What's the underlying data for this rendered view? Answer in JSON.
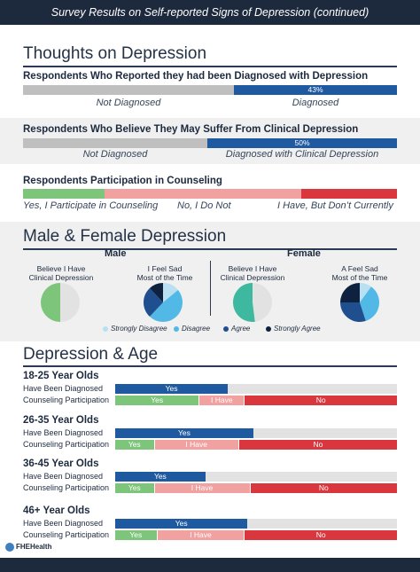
{
  "header": {
    "title": "Survey Results on Self-reported Signs of Depression (continued)"
  },
  "colors": {
    "navy": "#1d2a3e",
    "blue": "#1f5aa0",
    "grey": "#bfbfbf",
    "lightgrey": "#e2e2e2",
    "green": "#7cc57a",
    "pink": "#f0a1a0",
    "red": "#d9363e",
    "strongly_disagree": "#b9dff2",
    "disagree": "#52b8e6",
    "agree": "#1f4f8f",
    "strongly_agree": "#0e2240"
  },
  "thoughts": {
    "title": "Thoughts on Depression",
    "q1": {
      "title": "Respondents Who Reported they had been Diagnosed with Depression",
      "label": "43%",
      "not_label": "Not Diagnosed",
      "yes_label": "Diagnosed"
    },
    "q2": {
      "title": "Respondents Who Believe They May Suffer From Clinical Depression",
      "label": "50%",
      "not_label": "Not Diagnosed",
      "yes_label": "Diagnosed with Clinical Depression"
    },
    "q3": {
      "title": "Respondents Participation in Counseling",
      "yes_label": "Yes, I Participate in Counseling",
      "no_label": "No, I Do Not",
      "have_label": "I Have, But Don’t Currently"
    }
  },
  "gender": {
    "title": "Male & Female Depression",
    "male": "Male",
    "female": "Female",
    "male_pie1": {
      "line1": "Believe I Have",
      "line2": "Clinical Depression"
    },
    "male_pie2": {
      "line1": "I Feel Sad",
      "line2": "Most of the Time"
    },
    "female_pie1": {
      "line1": "Believe I Have",
      "line2": "Clinical Depression"
    },
    "female_pie2": {
      "line1": "A Feel Sad",
      "line2": "Most of the Time"
    },
    "legend": {
      "sd": "Strongly Disagree",
      "d": "Disagree",
      "a": "Agree",
      "sa": "Strongly Agree"
    }
  },
  "age": {
    "title": "Depression & Age",
    "diag_label": "Have Been Diagnosed",
    "couns_label": "Counseling Participation",
    "yes": "Yes",
    "ihave": "I Have",
    "no": "No",
    "groups": [
      {
        "name": "18-25 Year Olds"
      },
      {
        "name": "26-35 Year Olds"
      },
      {
        "name": "36-45 Year Olds"
      },
      {
        "name": "46+ Year Olds"
      }
    ]
  },
  "logo": {
    "text": "FHEHealth"
  },
  "chart_data": [
    {
      "type": "bar",
      "title": "Respondents Who Reported they had been Diagnosed with Depression",
      "categories": [
        "Not Diagnosed",
        "Diagnosed"
      ],
      "values": [
        57,
        43
      ]
    },
    {
      "type": "bar",
      "title": "Respondents Who Believe They May Suffer From Clinical Depression",
      "categories": [
        "Not Diagnosed",
        "Diagnosed with Clinical Depression"
      ],
      "values": [
        50,
        50
      ]
    },
    {
      "type": "bar",
      "title": "Respondents Participation in Counseling",
      "categories": [
        "Yes, I Participate in Counseling",
        "No, I Do Not",
        "I Have, But Don’t Currently"
      ],
      "values": [
        22,
        52,
        26
      ]
    },
    {
      "type": "pie",
      "title": "Believe I Have Clinical Depression",
      "group": "Male",
      "categories": [
        "Strongly Disagree",
        "Disagree",
        "Agree",
        "Strongly Agree"
      ],
      "colors": [
        "#e2e2e2",
        "#7cc57a"
      ],
      "values": [
        50,
        0,
        50,
        0
      ],
      "pie_colors": [
        "#e2e2e2",
        "#e2e2e2",
        "#7cc57a",
        "#7cc57a"
      ]
    },
    {
      "type": "pie",
      "title": "I Feel Sad Most of the Time",
      "group": "Male",
      "categories": [
        "Strongly Disagree",
        "Disagree",
        "Agree",
        "Strongly Agree"
      ],
      "values": [
        14,
        48,
        26,
        12
      ]
    },
    {
      "type": "pie",
      "title": "Believe I Have Clinical Depression",
      "group": "Female",
      "categories": [
        "Not",
        "Yes"
      ],
      "values": [
        48,
        52
      ]
    },
    {
      "type": "pie",
      "title": "A Feel Sad Most of the Time",
      "group": "Female",
      "categories": [
        "Strongly Disagree",
        "Disagree",
        "Agree",
        "Strongly Agree"
      ],
      "values": [
        10,
        35,
        30,
        25
      ]
    },
    {
      "type": "bar",
      "title": "Depression & Age - Have Been Diagnosed",
      "categories": [
        "18-25",
        "26-35",
        "36-45",
        "46+"
      ],
      "series": [
        {
          "name": "Yes",
          "values": [
            40,
            49,
            32,
            47
          ]
        }
      ]
    },
    {
      "type": "bar",
      "title": "Depression & Age - Counseling Participation",
      "categories": [
        "18-25",
        "26-35",
        "36-45",
        "46+"
      ],
      "series": [
        {
          "name": "Yes",
          "values": [
            30,
            14,
            14,
            15
          ]
        },
        {
          "name": "I Have",
          "values": [
            16,
            30,
            34,
            31
          ]
        },
        {
          "name": "No",
          "values": [
            54,
            56,
            52,
            54
          ]
        }
      ]
    }
  ]
}
